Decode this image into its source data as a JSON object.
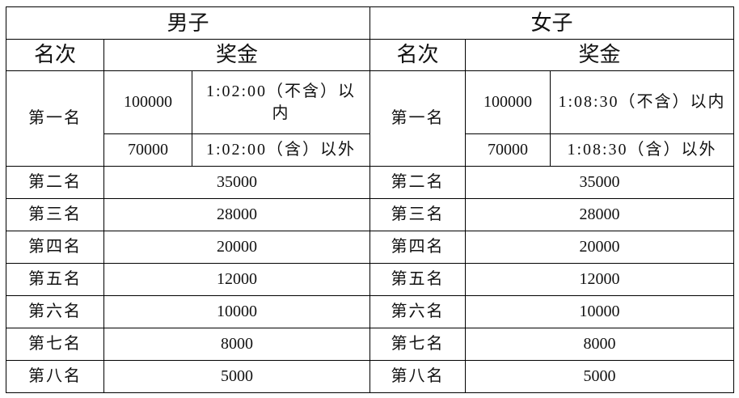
{
  "men": {
    "title": "男子",
    "rank_header": "名次",
    "prize_header": "奖金",
    "first": {
      "rank": "第一名",
      "prize_a": "100000",
      "cond_a": "1:02:00（不含）以内",
      "prize_b": "70000",
      "cond_b": "1:02:00（含）以外"
    },
    "rows": [
      {
        "rank": "第二名",
        "prize": "35000"
      },
      {
        "rank": "第三名",
        "prize": "28000"
      },
      {
        "rank": "第四名",
        "prize": "20000"
      },
      {
        "rank": "第五名",
        "prize": "12000"
      },
      {
        "rank": "第六名",
        "prize": "10000"
      },
      {
        "rank": "第七名",
        "prize": "8000"
      },
      {
        "rank": "第八名",
        "prize": "5000"
      }
    ]
  },
  "women": {
    "title": "女子",
    "rank_header": "名次",
    "prize_header": "奖金",
    "first": {
      "rank": "第一名",
      "prize_a": "100000",
      "cond_a": "1:08:30（不含）以内",
      "prize_b": "70000",
      "cond_b": "1:08:30（含）以外"
    },
    "rows": [
      {
        "rank": "第二名",
        "prize": "35000"
      },
      {
        "rank": "第三名",
        "prize": "28000"
      },
      {
        "rank": "第四名",
        "prize": "20000"
      },
      {
        "rank": "第五名",
        "prize": "12000"
      },
      {
        "rank": "第六名",
        "prize": "10000"
      },
      {
        "rank": "第七名",
        "prize": "8000"
      },
      {
        "rank": "第八名",
        "prize": "5000"
      }
    ]
  }
}
